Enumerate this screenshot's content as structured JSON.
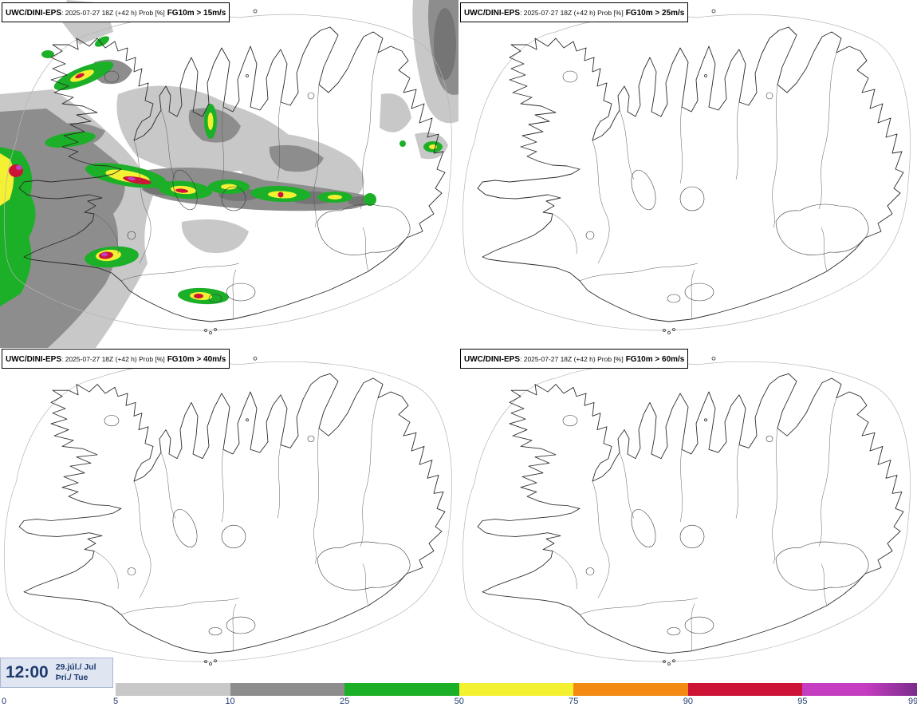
{
  "panels": [
    {
      "model": "UWC/DINI-EPS",
      "meta": ": 2025-07-27 18Z (+42 h) Prob [%]",
      "threshold": "FG10m > 15m/s"
    },
    {
      "model": "UWC/DINI-EPS",
      "meta": ": 2025-07-27 18Z (+42 h) Prob [%]",
      "threshold": "FG10m > 25m/s"
    },
    {
      "model": "UWC/DINI-EPS",
      "meta": ": 2025-07-27 18Z (+42 h) Prob [%]",
      "threshold": "FG10m > 40m/s"
    },
    {
      "model": "UWC/DINI-EPS",
      "meta": ": 2025-07-27 18Z (+42 h) Prob [%]",
      "threshold": "FG10m > 60m/s"
    }
  ],
  "footer": {
    "time": "12:00",
    "date_month": "29.júl./ Jul",
    "date_day": "Þri./ Tue"
  },
  "legend": {
    "ticks": [
      "0",
      "5",
      "10",
      "25",
      "50",
      "75",
      "90",
      "95",
      "99"
    ],
    "segment_colors": [
      "#c8c8c8",
      "#8d8d8d",
      "#1cb028",
      "#f4f133",
      "#f28a14",
      "#cd1437",
      "#c53dc0"
    ],
    "last_fade_color": "#7a2d8c",
    "accent_text_color": "#1d3a6e"
  }
}
